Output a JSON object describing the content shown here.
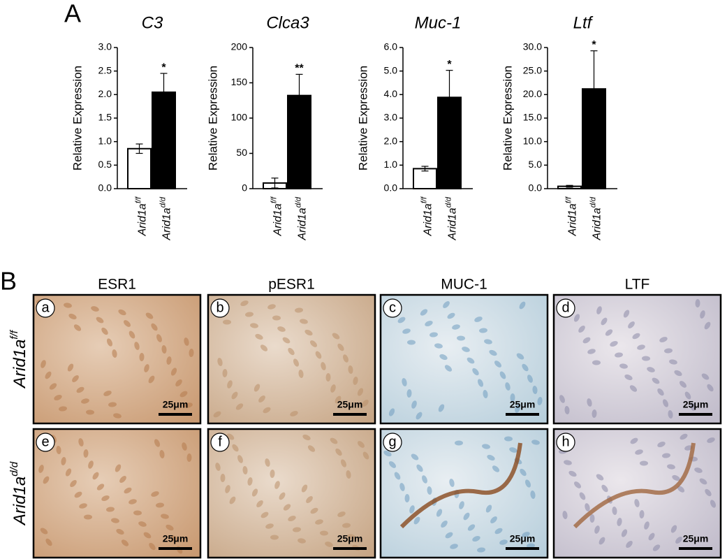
{
  "panel_a_label": "A",
  "chart_data": [
    {
      "type": "bar",
      "title": "C3",
      "ylabel": "Relative Expression",
      "categories": [
        "Arid1a",
        "Arid1a"
      ],
      "category_superscripts": [
        "f/f",
        "d/d"
      ],
      "values": [
        0.85,
        2.05
      ],
      "errors": [
        0.1,
        0.4
      ],
      "colors": [
        "#ffffff",
        "#000000"
      ],
      "annotations": [
        {
          "index": 1,
          "text": "*"
        }
      ],
      "ylim": [
        0,
        3
      ],
      "yticks": [
        {
          "value": 0,
          "label": "0.0"
        },
        0.5,
        {
          "value": 1,
          "label": "1.0"
        },
        1.5,
        {
          "value": 2,
          "label": "2.0"
        },
        2.5,
        {
          "value": 3,
          "label": "3.0"
        }
      ]
    },
    {
      "type": "bar",
      "title": "Clca3",
      "ylabel": "Relative Expression",
      "categories": [
        "Arid1a",
        "Arid1a"
      ],
      "category_superscripts": [
        "f/f",
        "d/d"
      ],
      "values": [
        8,
        132
      ],
      "errors": [
        7,
        30
      ],
      "colors": [
        "#ffffff",
        "#000000"
      ],
      "annotations": [
        {
          "index": 1,
          "text": "**"
        }
      ],
      "ylim": [
        0,
        200
      ],
      "yticks": [
        0,
        50,
        100,
        150,
        200
      ]
    },
    {
      "type": "bar",
      "title": "Muc-1",
      "ylabel": "Relative Expression",
      "categories": [
        "Arid1a",
        "Arid1a"
      ],
      "category_superscripts": [
        "f/f",
        "d/d"
      ],
      "values": [
        0.85,
        3.88
      ],
      "errors": [
        0.1,
        1.15
      ],
      "colors": [
        "#ffffff",
        "#000000"
      ],
      "annotations": [
        {
          "index": 1,
          "text": "*"
        }
      ],
      "ylim": [
        0,
        6
      ],
      "yticks": [
        {
          "value": 0,
          "label": "0.0"
        },
        {
          "value": 1,
          "label": "1.0"
        },
        {
          "value": 2,
          "label": "2.0"
        },
        {
          "value": 3,
          "label": "3.0"
        },
        {
          "value": 4,
          "label": "4.0"
        },
        {
          "value": 5,
          "label": "5.0"
        },
        {
          "value": 6,
          "label": "6.0"
        }
      ]
    },
    {
      "type": "bar",
      "title": "Ltf",
      "ylabel": "Relative Expression",
      "categories": [
        "Arid1a",
        "Arid1a"
      ],
      "category_superscripts": [
        "f/f",
        "d/d"
      ],
      "values": [
        0.5,
        21.2
      ],
      "errors": [
        0.2,
        8.1
      ],
      "colors": [
        "#ffffff",
        "#000000"
      ],
      "annotations": [
        {
          "index": 1,
          "text": "*"
        }
      ],
      "ylim": [
        0,
        30
      ],
      "yticks": [
        {
          "value": 0,
          "label": "0.0"
        },
        {
          "value": 5,
          "label": "5.0"
        },
        {
          "value": 10,
          "label": "10.0"
        },
        {
          "value": 15,
          "label": "15.0"
        },
        {
          "value": 20,
          "label": "20.0"
        },
        {
          "value": 25,
          "label": "25.0"
        },
        {
          "value": 30,
          "label": "30.0"
        }
      ]
    }
  ],
  "figure_b": {
    "label": "B",
    "columns": [
      "ESR1",
      "pESR1",
      "MUC-1",
      "LTF"
    ],
    "rows": [
      {
        "base": "Arid1a",
        "sup": "f/f"
      },
      {
        "base": "Arid1a",
        "sup": "d/d"
      }
    ],
    "panels": [
      {
        "letter": "a",
        "scale": "25μm"
      },
      {
        "letter": "b",
        "scale": "25μm"
      },
      {
        "letter": "c",
        "scale": "25μm"
      },
      {
        "letter": "d",
        "scale": "25μm"
      },
      {
        "letter": "e",
        "scale": "25μm"
      },
      {
        "letter": "f",
        "scale": "25μm"
      },
      {
        "letter": "g",
        "scale": "25μm"
      },
      {
        "letter": "h",
        "scale": "25μm"
      }
    ]
  }
}
